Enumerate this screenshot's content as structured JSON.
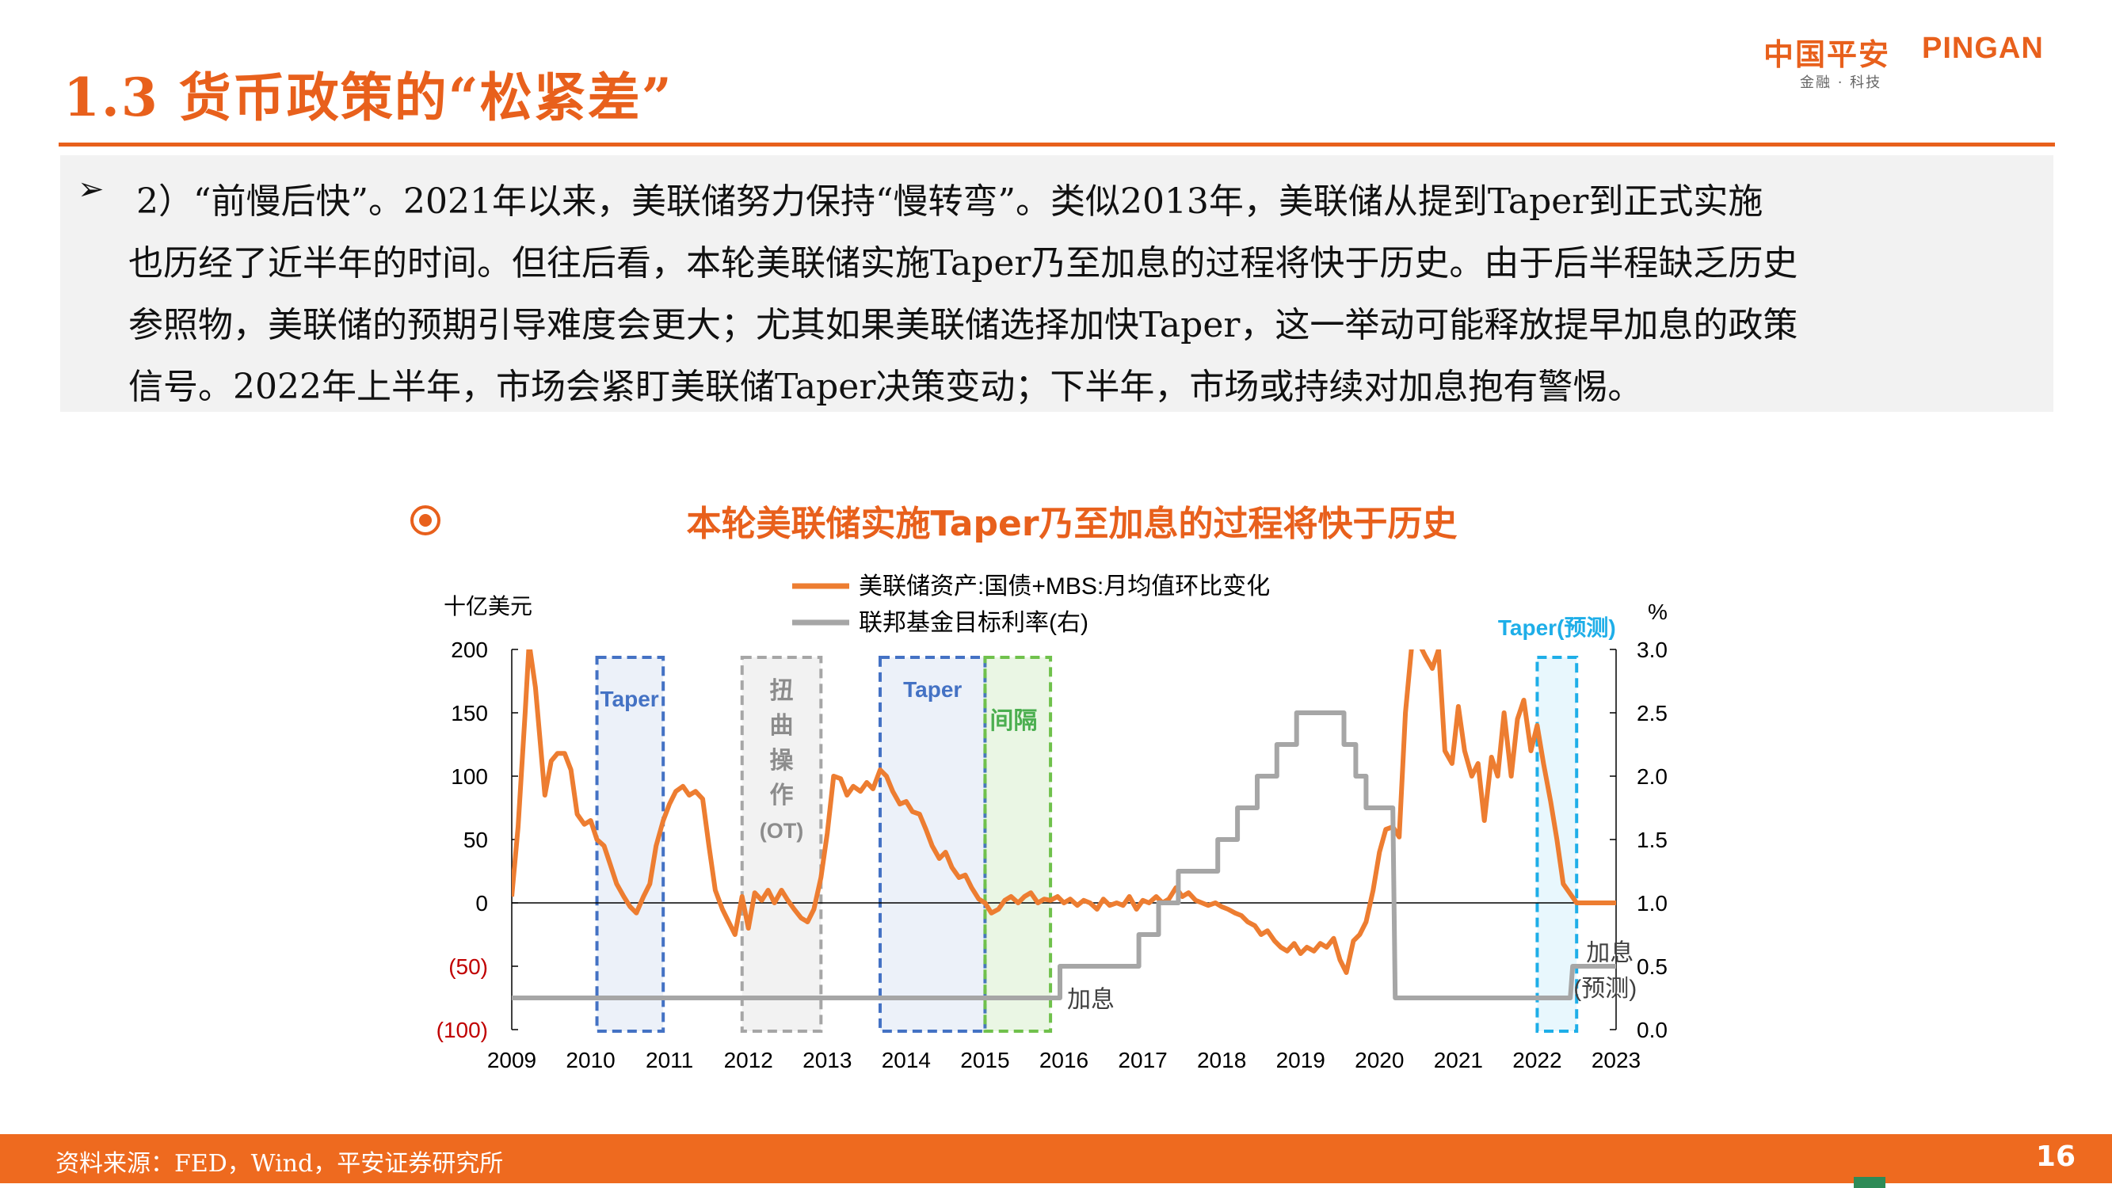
{
  "header": {
    "title": "1.3 货币政策的“松紧差”",
    "logo_cn": "中国平安",
    "logo_en": "PINGAN",
    "logo_sub": "金融 · 科技"
  },
  "textbox": {
    "bullet": "➢",
    "lines": [
      "2）“前慢后快”。2021年以来，美联储努力保持“慢转弯”。类似2013年，美联储从提到Taper到正式实施",
      "也历经了近半年的时间。但往后看，本轮美联储实施Taper乃至加息的过程将快于历史。由于后半程缺乏历史",
      "参照物，美联储的预期引导难度会更大；尤其如果美联储选择加快Taper，这一举动可能释放提早加息的政策",
      "信号。2022年上半年，市场会紧盯美联储Taper决策变动；下半年，市场或持续对加息抱有警惕。"
    ]
  },
  "chart_title": "本轮美联储实施Taper乃至加息的过程将快于历史",
  "chart_data": {
    "type": "line",
    "left_axis": {
      "unit": "十亿美元",
      "range": [
        -100,
        200
      ],
      "ticks": [
        "(100)",
        "(50)",
        "0",
        "50",
        "100",
        "150",
        "200"
      ],
      "tick_values": [
        -100,
        -50,
        0,
        50,
        100,
        150,
        200
      ]
    },
    "right_axis": {
      "unit": "%",
      "range": [
        0.0,
        3.0
      ],
      "ticks": [
        "0.0",
        "0.5",
        "1.0",
        "1.5",
        "2.0",
        "2.5",
        "3.0"
      ],
      "tick_values": [
        0.0,
        0.5,
        1.0,
        1.5,
        2.0,
        2.5,
        3.0
      ]
    },
    "x_axis": {
      "range": [
        2009,
        2023
      ],
      "ticks": [
        "2009",
        "2010",
        "2011",
        "2012",
        "2013",
        "2014",
        "2015",
        "2016",
        "2017",
        "2018",
        "2019",
        "2020",
        "2021",
        "2022",
        "2023"
      ]
    },
    "legend": {
      "position": "top-center"
    },
    "series": [
      {
        "name": "美联储资产:国债+MBS:月均值环比变化",
        "axis": "left",
        "color": "#ED7D31",
        "points": [
          [
            2009.0,
            5
          ],
          [
            2009.08,
            60
          ],
          [
            2009.17,
            150
          ],
          [
            2009.22,
            205
          ],
          [
            2009.3,
            170
          ],
          [
            2009.42,
            85
          ],
          [
            2009.5,
            112
          ],
          [
            2009.58,
            118
          ],
          [
            2009.67,
            118
          ],
          [
            2009.75,
            105
          ],
          [
            2009.83,
            70
          ],
          [
            2009.92,
            62
          ],
          [
            2010.0,
            65
          ],
          [
            2010.08,
            50
          ],
          [
            2010.17,
            45
          ],
          [
            2010.25,
            30
          ],
          [
            2010.33,
            15
          ],
          [
            2010.42,
            5
          ],
          [
            2010.5,
            -3
          ],
          [
            2010.58,
            -8
          ],
          [
            2010.67,
            5
          ],
          [
            2010.75,
            15
          ],
          [
            2010.83,
            45
          ],
          [
            2010.92,
            65
          ],
          [
            2011.0,
            78
          ],
          [
            2011.08,
            88
          ],
          [
            2011.17,
            92
          ],
          [
            2011.25,
            85
          ],
          [
            2011.33,
            88
          ],
          [
            2011.42,
            82
          ],
          [
            2011.5,
            45
          ],
          [
            2011.58,
            10
          ],
          [
            2011.67,
            -5
          ],
          [
            2011.75,
            -15
          ],
          [
            2011.83,
            -25
          ],
          [
            2011.92,
            5
          ],
          [
            2012.0,
            -20
          ],
          [
            2012.08,
            8
          ],
          [
            2012.17,
            2
          ],
          [
            2012.25,
            10
          ],
          [
            2012.33,
            0
          ],
          [
            2012.42,
            10
          ],
          [
            2012.5,
            2
          ],
          [
            2012.58,
            -5
          ],
          [
            2012.67,
            -12
          ],
          [
            2012.75,
            -15
          ],
          [
            2012.83,
            -5
          ],
          [
            2012.92,
            20
          ],
          [
            2013.0,
            55
          ],
          [
            2013.08,
            100
          ],
          [
            2013.17,
            98
          ],
          [
            2013.25,
            85
          ],
          [
            2013.33,
            92
          ],
          [
            2013.42,
            88
          ],
          [
            2013.5,
            95
          ],
          [
            2013.58,
            90
          ],
          [
            2013.67,
            105
          ],
          [
            2013.75,
            100
          ],
          [
            2013.83,
            88
          ],
          [
            2013.92,
            78
          ],
          [
            2014.0,
            80
          ],
          [
            2014.08,
            72
          ],
          [
            2014.17,
            70
          ],
          [
            2014.25,
            58
          ],
          [
            2014.33,
            45
          ],
          [
            2014.42,
            35
          ],
          [
            2014.5,
            40
          ],
          [
            2014.58,
            28
          ],
          [
            2014.67,
            20
          ],
          [
            2014.75,
            22
          ],
          [
            2014.83,
            12
          ],
          [
            2014.92,
            3
          ],
          [
            2015.0,
            0
          ],
          [
            2015.08,
            -8
          ],
          [
            2015.17,
            -5
          ],
          [
            2015.25,
            2
          ],
          [
            2015.33,
            5
          ],
          [
            2015.42,
            0
          ],
          [
            2015.5,
            5
          ],
          [
            2015.58,
            8
          ],
          [
            2015.67,
            0
          ],
          [
            2015.75,
            3
          ],
          [
            2015.83,
            2
          ],
          [
            2015.92,
            5
          ],
          [
            2016.0,
            0
          ],
          [
            2016.08,
            3
          ],
          [
            2016.17,
            -2
          ],
          [
            2016.25,
            2
          ],
          [
            2016.33,
            0
          ],
          [
            2016.42,
            -5
          ],
          [
            2016.5,
            3
          ],
          [
            2016.58,
            -2
          ],
          [
            2016.67,
            0
          ],
          [
            2016.75,
            -2
          ],
          [
            2016.83,
            5
          ],
          [
            2016.92,
            -5
          ],
          [
            2017.0,
            2
          ],
          [
            2017.08,
            0
          ],
          [
            2017.17,
            5
          ],
          [
            2017.25,
            0
          ],
          [
            2017.33,
            3
          ],
          [
            2017.42,
            12
          ],
          [
            2017.5,
            5
          ],
          [
            2017.58,
            8
          ],
          [
            2017.67,
            2
          ],
          [
            2017.75,
            0
          ],
          [
            2017.83,
            -2
          ],
          [
            2017.92,
            0
          ],
          [
            2018.0,
            -3
          ],
          [
            2018.08,
            -5
          ],
          [
            2018.17,
            -8
          ],
          [
            2018.25,
            -10
          ],
          [
            2018.33,
            -15
          ],
          [
            2018.42,
            -18
          ],
          [
            2018.5,
            -25
          ],
          [
            2018.58,
            -22
          ],
          [
            2018.67,
            -30
          ],
          [
            2018.75,
            -35
          ],
          [
            2018.83,
            -38
          ],
          [
            2018.92,
            -32
          ],
          [
            2019.0,
            -40
          ],
          [
            2019.08,
            -35
          ],
          [
            2019.17,
            -38
          ],
          [
            2019.25,
            -32
          ],
          [
            2019.33,
            -35
          ],
          [
            2019.42,
            -28
          ],
          [
            2019.5,
            -45
          ],
          [
            2019.58,
            -55
          ],
          [
            2019.67,
            -30
          ],
          [
            2019.75,
            -25
          ],
          [
            2019.83,
            -15
          ],
          [
            2019.92,
            10
          ],
          [
            2020.0,
            40
          ],
          [
            2020.08,
            58
          ],
          [
            2020.17,
            60
          ],
          [
            2020.25,
            52
          ],
          [
            2020.33,
            150
          ],
          [
            2020.42,
            210
          ],
          [
            2020.5,
            205
          ],
          [
            2020.58,
            195
          ],
          [
            2020.67,
            185
          ],
          [
            2020.75,
            200
          ],
          [
            2020.83,
            120
          ],
          [
            2020.92,
            110
          ],
          [
            2021.0,
            155
          ],
          [
            2021.08,
            120
          ],
          [
            2021.17,
            100
          ],
          [
            2021.25,
            110
          ],
          [
            2021.33,
            65
          ],
          [
            2021.42,
            115
          ],
          [
            2021.5,
            100
          ],
          [
            2021.58,
            150
          ],
          [
            2021.67,
            100
          ],
          [
            2021.75,
            145
          ],
          [
            2021.83,
            160
          ],
          [
            2021.92,
            120
          ],
          [
            2022.0,
            140
          ],
          [
            2022.08,
            110
          ],
          [
            2022.17,
            80
          ],
          [
            2022.25,
            50
          ],
          [
            2022.33,
            15
          ],
          [
            2022.5,
            0
          ],
          [
            2022.75,
            0
          ],
          [
            2023.0,
            0
          ]
        ]
      },
      {
        "name": "联邦基金目标利率(右)",
        "axis": "right",
        "color": "#A6A6A6",
        "points": [
          [
            2009.0,
            0.25
          ],
          [
            2015.95,
            0.25
          ],
          [
            2015.95,
            0.5
          ],
          [
            2016.95,
            0.5
          ],
          [
            2016.95,
            0.75
          ],
          [
            2017.2,
            0.75
          ],
          [
            2017.2,
            1.0
          ],
          [
            2017.45,
            1.0
          ],
          [
            2017.45,
            1.25
          ],
          [
            2017.95,
            1.25
          ],
          [
            2017.95,
            1.5
          ],
          [
            2018.2,
            1.5
          ],
          [
            2018.2,
            1.75
          ],
          [
            2018.45,
            1.75
          ],
          [
            2018.45,
            2.0
          ],
          [
            2018.7,
            2.0
          ],
          [
            2018.7,
            2.25
          ],
          [
            2018.95,
            2.25
          ],
          [
            2018.95,
            2.5
          ],
          [
            2019.55,
            2.5
          ],
          [
            2019.55,
            2.25
          ],
          [
            2019.7,
            2.25
          ],
          [
            2019.7,
            2.0
          ],
          [
            2019.83,
            2.0
          ],
          [
            2019.83,
            1.75
          ],
          [
            2020.17,
            1.75
          ],
          [
            2020.2,
            0.25
          ],
          [
            2022.42,
            0.25
          ],
          [
            2022.45,
            0.5
          ],
          [
            2023.0,
            0.5
          ]
        ]
      }
    ],
    "annotations": [
      {
        "text": "Taper",
        "x_range": [
          2010.08,
          2010.92
        ],
        "style": "dashed-box",
        "color": "#4472C4",
        "text_color": "#4472C4"
      },
      {
        "text": "扭曲操作(OT)",
        "x_range": [
          2011.92,
          2012.92
        ],
        "style": "dashed-box",
        "color": "#A6A6A6",
        "text_color": "#8C8C8C"
      },
      {
        "text": "Taper",
        "x_range": [
          2013.67,
          2015.0
        ],
        "style": "dashed-box",
        "color": "#4472C4",
        "text_color": "#4472C4"
      },
      {
        "text": "间隔",
        "x_range": [
          2015.0,
          2015.83
        ],
        "style": "dashed-box",
        "color": "#70C14C",
        "text_color": "#4CAF50"
      },
      {
        "text": "Taper(预测)",
        "x_range": [
          2022.0,
          2022.5
        ],
        "style": "dashed-box",
        "color": "#1EAEE8",
        "text_color": "#1EAEE8"
      },
      {
        "text": "加息",
        "x": 2016.0,
        "y_left": -75
      },
      {
        "text": "加息(预测)",
        "x": 2022.5,
        "y_left": -30
      }
    ]
  },
  "footer": {
    "source": "资料来源：FED，Wind，平安证券研究所",
    "page_number": "16"
  }
}
